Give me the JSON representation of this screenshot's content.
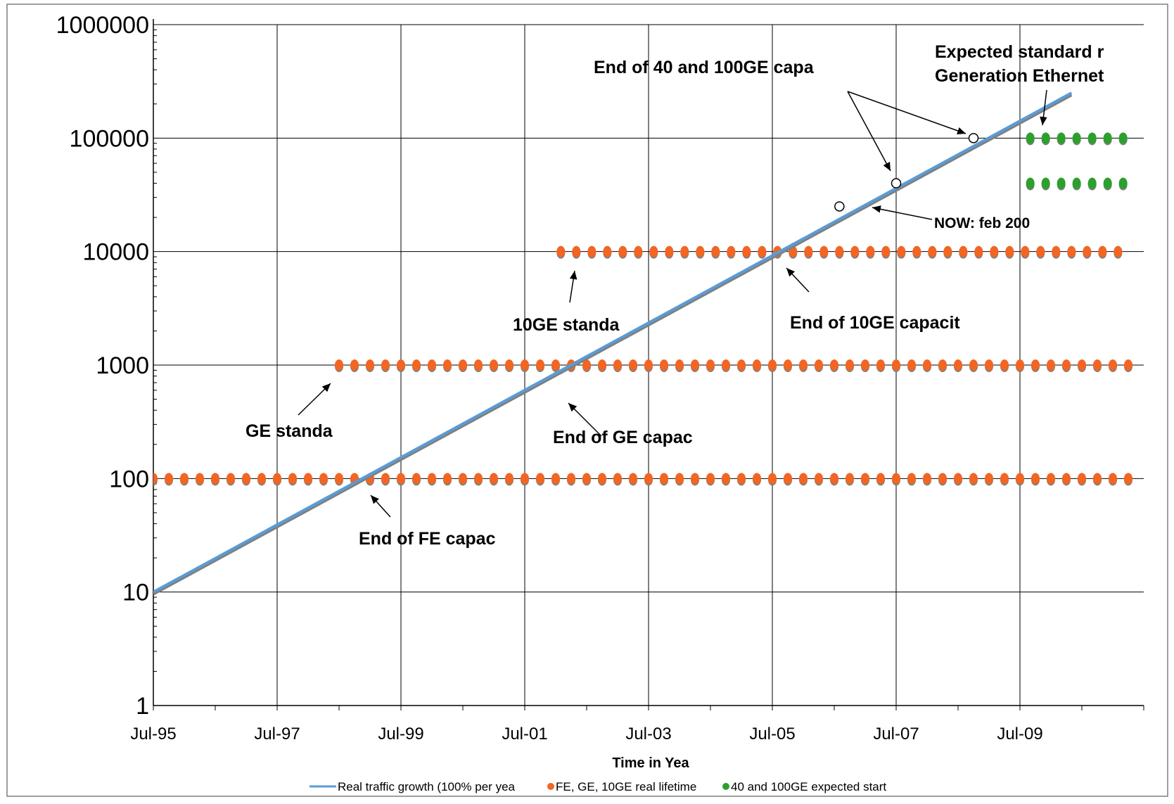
{
  "chart_data": {
    "type": "line",
    "title": "",
    "xlabel": "Time in Yea",
    "ylabel": "",
    "y_scale": "log",
    "ylim": [
      1,
      1000000
    ],
    "xlim": [
      "1995-07",
      "2011-07"
    ],
    "grid": true,
    "legend_position": "bottom",
    "y_ticks": [
      "1",
      "10",
      "100",
      "1000",
      "10000",
      "100000",
      "1000000"
    ],
    "x_ticks": [
      {
        "label": "Jul-95",
        "date": "1995-07"
      },
      {
        "label": "Jul-97",
        "date": "1997-07"
      },
      {
        "label": "Jul-99",
        "date": "1999-07"
      },
      {
        "label": "Jul-01",
        "date": "2001-07"
      },
      {
        "label": "Jul-03",
        "date": "2003-07"
      },
      {
        "label": "Jul-05",
        "date": "2005-07"
      },
      {
        "label": "Jul-07",
        "date": "2007-07"
      },
      {
        "label": "Jul-09",
        "date": "2009-07"
      }
    ],
    "series": [
      {
        "name": "Real traffic growth (100% per year)",
        "kind": "line",
        "color": "#5b9bd5",
        "points": [
          {
            "x": "1995-07",
            "y": 10
          },
          {
            "x": "2010-05",
            "y": 250000
          }
        ]
      },
      {
        "name": "FE, GE, 10GE real lifetime",
        "kind": "dotted",
        "color": "#f26522",
        "segments": [
          {
            "y": 100,
            "from": "1995-07",
            "to": "2011-04"
          },
          {
            "y": 1000,
            "from": "1998-07",
            "to": "2011-04"
          },
          {
            "y": 10000,
            "from": "2002-02",
            "to": "2011-04"
          }
        ]
      },
      {
        "name": "40 and 100GE expected start",
        "kind": "dotted",
        "color": "#2ca02c",
        "segments": [
          {
            "y": 40000,
            "from": "2009-09",
            "to": "2011-04"
          },
          {
            "y": 100000,
            "from": "2009-09",
            "to": "2011-04"
          }
        ]
      }
    ],
    "markers": [
      {
        "x": "2006-08",
        "y": 25000
      },
      {
        "x": "2007-07",
        "y": 40000
      },
      {
        "x": "2008-10",
        "y": 100000
      }
    ],
    "annotations": [
      {
        "text": "End of FE capac",
        "x": "1998-10",
        "y": 100
      },
      {
        "text": "GE standa",
        "x": "1998-07",
        "y": 1000
      },
      {
        "text": "End of GE capac",
        "x": "2002-02",
        "y": 1000
      },
      {
        "text": "10GE standa",
        "x": "2002-02",
        "y": 10000
      },
      {
        "text": "End of 10GE capacit",
        "x": "2005-07",
        "y": 10000
      },
      {
        "text": "NOW: feb 200",
        "x": "2006-08",
        "y": 25000
      },
      {
        "text": "End of 40 and 100GE capa",
        "x": "2007-07",
        "y": 40000
      },
      {
        "text": "Expected standard r",
        "x": "2009-09",
        "y": 100000
      },
      {
        "text": "Generation Ethernet",
        "x": "2009-09",
        "y": 100000
      }
    ]
  }
}
